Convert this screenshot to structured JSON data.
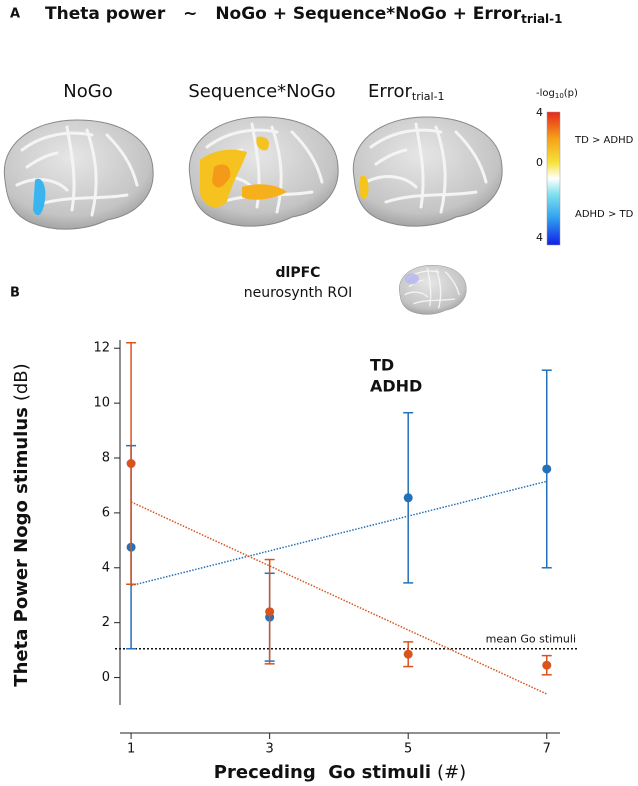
{
  "panel_a": {
    "label": "A",
    "title_lhs": "Theta power",
    "title_tilde": "~",
    "title_rhs": "NoGo + Sequence*NoGo + Error",
    "title_sub": "trial-1",
    "brain_labels": [
      "NoGo",
      "Sequence*NoGo",
      "Error"
    ],
    "brain_label_sub": "trial-1",
    "colorbar": {
      "title_main": "-log",
      "title_sub": "10",
      "title_end": "(p)",
      "tick_top": "4",
      "tick_mid": "0",
      "tick_bottom": "4",
      "upper_label": "TD > ADHD",
      "lower_label": "ADHD > TD"
    },
    "roi_title": "dlPFC",
    "roi_subtitle": "neurosynth ROI"
  },
  "chart_data": {
    "type": "errorbar",
    "panel_label": "B",
    "x": [
      1,
      3,
      5,
      7
    ],
    "series": [
      {
        "name": "TD",
        "color": "#2471b8",
        "values": [
          4.75,
          2.2,
          6.55,
          7.6
        ],
        "errors": [
          3.7,
          1.6,
          3.1,
          3.6
        ],
        "fit": [
          3.35,
          7.15
        ]
      },
      {
        "name": "ADHD",
        "color": "#d9531e",
        "values": [
          7.8,
          2.4,
          0.85,
          0.45
        ],
        "errors": [
          4.4,
          1.9,
          0.45,
          0.35
        ],
        "fit": [
          6.4,
          -0.6
        ]
      }
    ],
    "fit_x": [
      1,
      7
    ],
    "reference_line": {
      "value": 1.05,
      "label": "mean Go stimuli"
    },
    "xlabel": "Preceding  Go stimuli",
    "xlabel_unit": "(#)",
    "ylabel": "Theta Power Nogo stimulus",
    "ylabel_unit": "(dB)",
    "xlim": [
      0.84,
      7.22
    ],
    "ylim": [
      -1,
      12.3
    ],
    "xticks": [
      1,
      3,
      5,
      7
    ],
    "yticks": [
      0,
      2,
      4,
      6,
      8,
      10,
      12
    ]
  }
}
